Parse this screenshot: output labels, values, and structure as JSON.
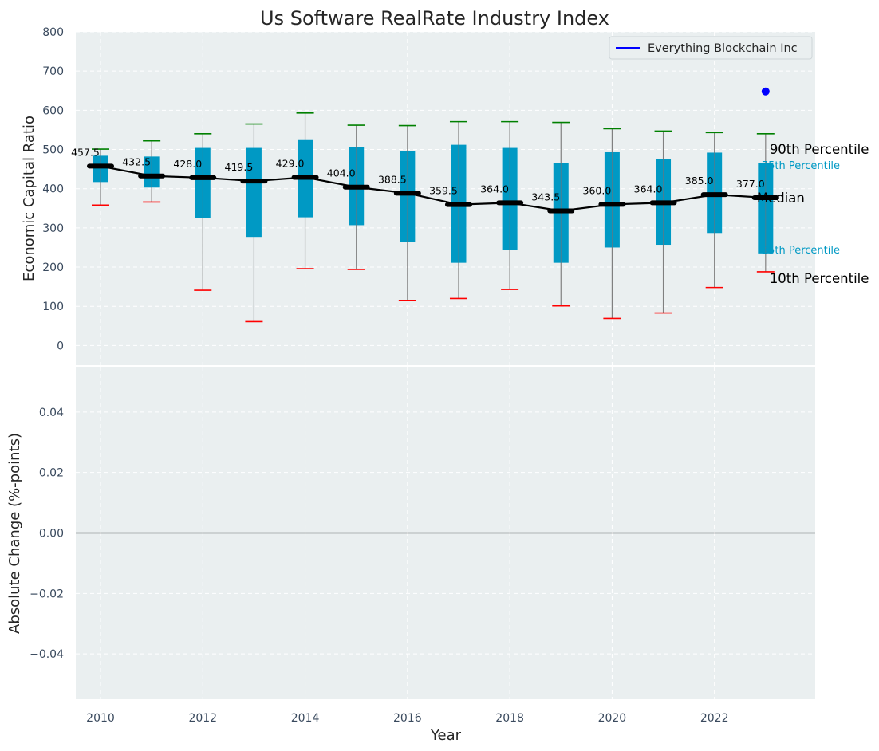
{
  "chart_data": {
    "type": "box",
    "title": "Us Software RealRate Industry Index",
    "xlabel": "Year",
    "years": [
      2010,
      2011,
      2012,
      2013,
      2014,
      2015,
      2016,
      2017,
      2018,
      2019,
      2020,
      2021,
      2022,
      2023
    ],
    "x_ticks": [
      "2010",
      "2012",
      "2014",
      "2016",
      "2018",
      "2020",
      "2022"
    ],
    "top_panel": {
      "ylabel": "Economic Capital Ratio",
      "ylim": [
        -50,
        800
      ],
      "y_ticks": [
        "0",
        "100",
        "200",
        "300",
        "400",
        "500",
        "600",
        "700",
        "800"
      ],
      "p10": [
        358,
        366,
        141,
        61,
        196,
        194,
        115,
        120,
        143,
        101,
        69,
        83,
        148,
        188
      ],
      "p25": [
        417,
        403,
        325,
        277,
        327,
        307,
        265,
        211,
        244,
        211,
        250,
        257,
        287,
        235
      ],
      "median": [
        457.5,
        432.5,
        428.0,
        419.5,
        429.0,
        404.0,
        388.5,
        359.5,
        364.0,
        343.5,
        360.0,
        364.0,
        385.0,
        377.0
      ],
      "median_labels": [
        "457.5",
        "432.5",
        "428.0",
        "419.5",
        "429.0",
        "404.0",
        "388.5",
        "359.5",
        "364.0",
        "343.5",
        "360.0",
        "364.0",
        "385.0",
        "377.0"
      ],
      "p75": [
        484,
        482,
        504,
        504,
        526,
        506,
        495,
        512,
        504,
        466,
        493,
        476,
        492,
        466
      ],
      "p90": [
        501,
        522,
        540,
        565,
        593,
        562,
        561,
        571,
        571,
        569,
        553,
        547,
        543,
        540
      ],
      "company": {
        "name": "Everything Blockchain Inc",
        "year": 2023,
        "value": 648
      },
      "side_labels": {
        "p90": "90th Percentile",
        "p75": "75th Percentile",
        "median": "Median",
        "p25": "25th Percentile",
        "p10": "10th Percentile"
      },
      "legend_position": "upper right"
    },
    "bottom_panel": {
      "ylabel": "Absolute Change (%-points)",
      "ylim": [
        -0.055,
        0.055
      ],
      "y_ticks": [
        "−0.04",
        "−0.02",
        "0.00",
        "0.02",
        "0.04"
      ],
      "y_tick_values": [
        -0.04,
        -0.02,
        0.0,
        0.02,
        0.04
      ]
    },
    "colors": {
      "background": "#eaeff0",
      "box": "#0099c4",
      "median": "#000000",
      "p90_cap": "#008000",
      "p10_cap": "#ff0000",
      "whisker": "#808080",
      "company": "#0000ff",
      "grid": "#ffffff"
    }
  }
}
